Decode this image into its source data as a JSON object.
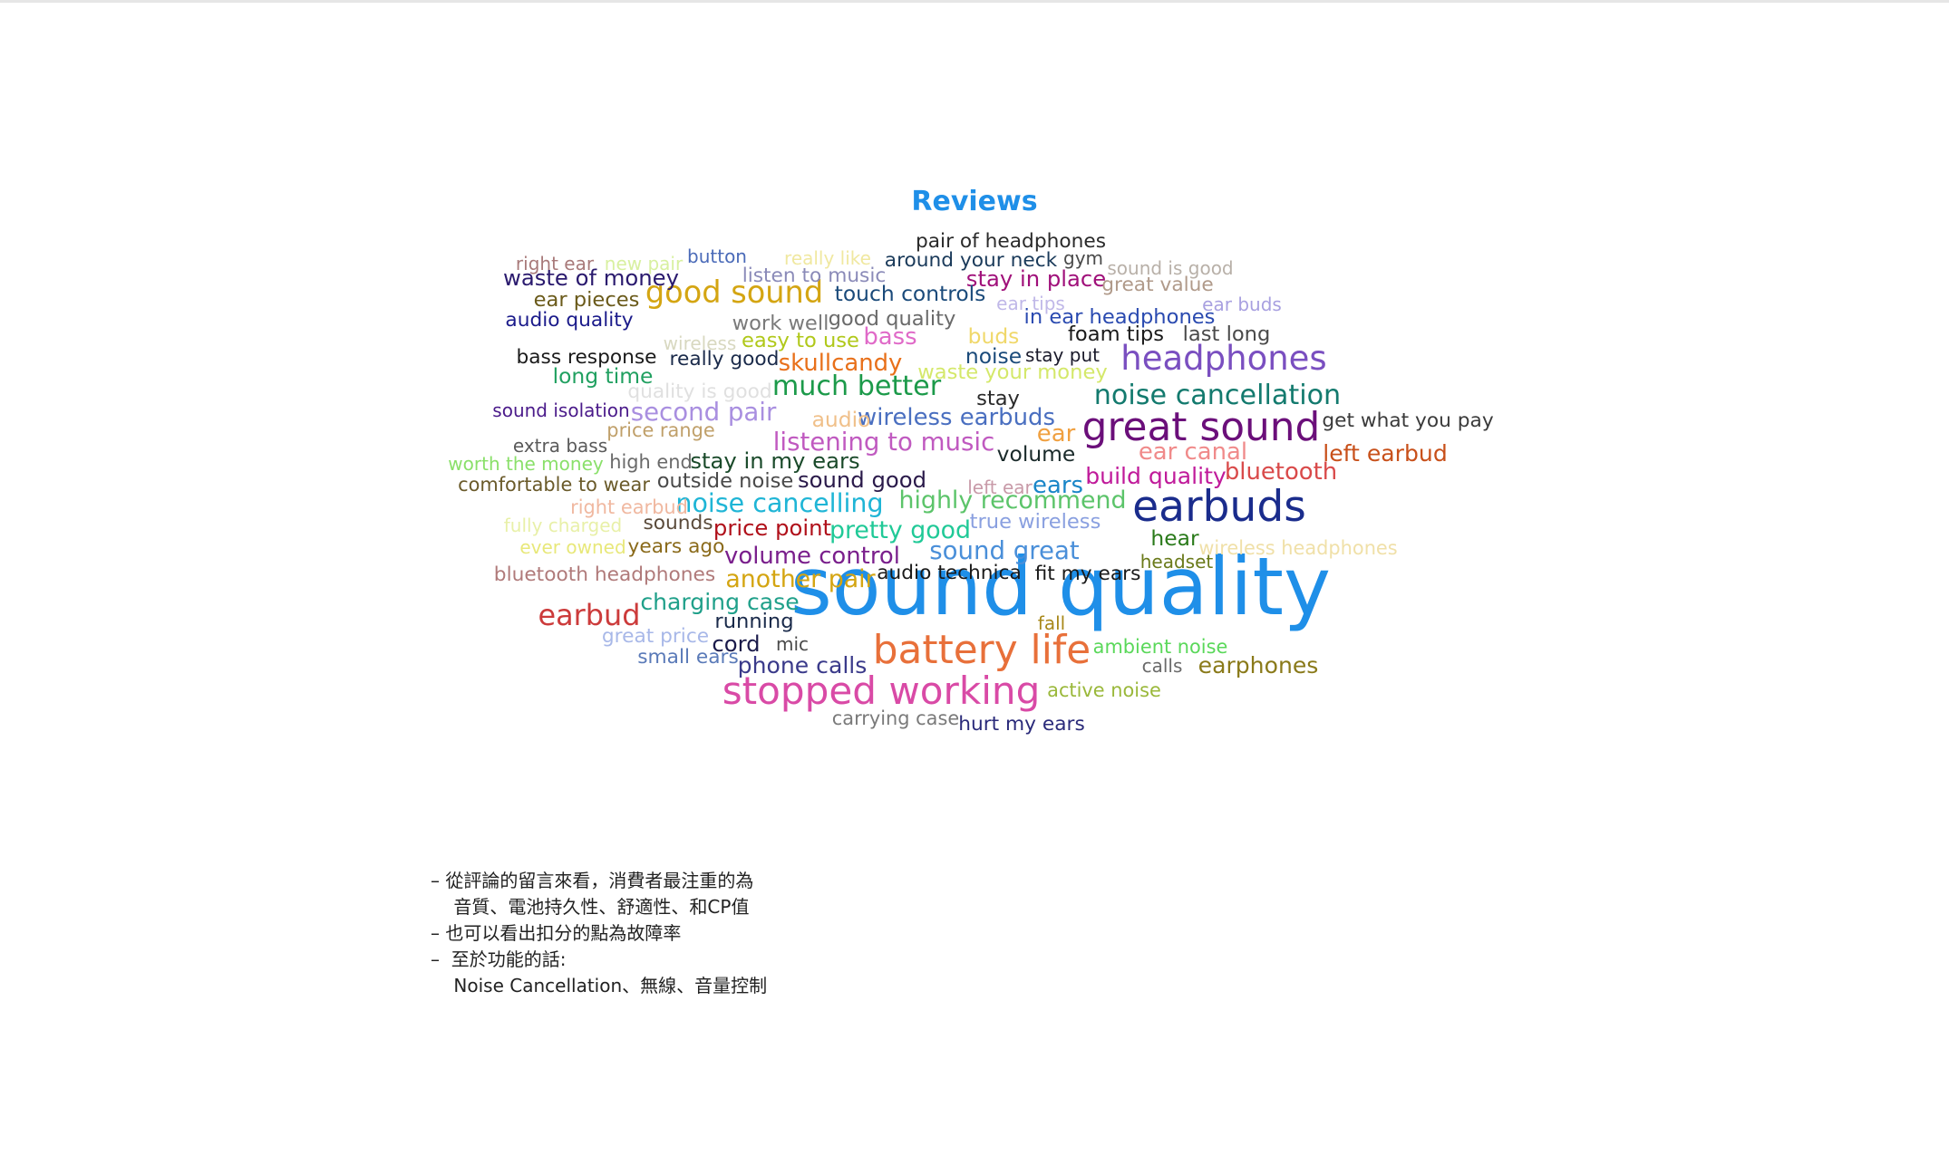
{
  "chart_data": {
    "type": "wordcloud",
    "title": "Reviews",
    "words": [
      {
        "text": "sound quality",
        "weight": 100,
        "color": "#1f8fe8"
      },
      {
        "text": "earbuds",
        "weight": 52,
        "color": "#1a2c8c"
      },
      {
        "text": "great sound",
        "weight": 48,
        "color": "#6b0f7a"
      },
      {
        "text": "battery life",
        "weight": 48,
        "color": "#e8703a"
      },
      {
        "text": "stopped working",
        "weight": 46,
        "color": "#d94aa6"
      },
      {
        "text": "headphones",
        "weight": 40,
        "color": "#7a4fc0"
      },
      {
        "text": "good sound",
        "weight": 36,
        "color": "#d4a512"
      },
      {
        "text": "earbud",
        "weight": 34,
        "color": "#cc3b3b"
      },
      {
        "text": "noise cancellation",
        "weight": 32,
        "color": "#137a6e"
      },
      {
        "text": "much better",
        "weight": 32,
        "color": "#1c9a4a"
      },
      {
        "text": "noise cancelling",
        "weight": 30,
        "color": "#1fb5d6"
      },
      {
        "text": "listening to music",
        "weight": 29,
        "color": "#c05ac0"
      },
      {
        "text": "second pair",
        "weight": 29,
        "color": "#a98fe0"
      },
      {
        "text": "sound great",
        "weight": 29,
        "color": "#4a8fd9"
      },
      {
        "text": "pretty good",
        "weight": 28,
        "color": "#20c997"
      },
      {
        "text": "highly recommend",
        "weight": 28,
        "color": "#5cc46a"
      },
      {
        "text": "another pair",
        "weight": 28,
        "color": "#d4a512"
      },
      {
        "text": "skullcandy",
        "weight": 27,
        "color": "#e8701a"
      },
      {
        "text": "bass",
        "weight": 27,
        "color": "#e06ac8"
      },
      {
        "text": "wireless earbuds",
        "weight": 27,
        "color": "#4a6fc0"
      },
      {
        "text": "volume control",
        "weight": 27,
        "color": "#7a1f8c"
      },
      {
        "text": "ear canal",
        "weight": 27,
        "color": "#f08a8a"
      },
      {
        "text": "bluetooth",
        "weight": 27,
        "color": "#d94a4a"
      },
      {
        "text": "ears",
        "weight": 27,
        "color": "#1a86c8"
      },
      {
        "text": "ear",
        "weight": 27,
        "color": "#f0a040"
      },
      {
        "text": "left earbud",
        "weight": 26,
        "color": "#c8501a"
      },
      {
        "text": "build quality",
        "weight": 26,
        "color": "#c01a9a"
      },
      {
        "text": "charging case",
        "weight": 26,
        "color": "#20a08a"
      },
      {
        "text": "phone calls",
        "weight": 26,
        "color": "#3a3a8a"
      },
      {
        "text": "earphones",
        "weight": 26,
        "color": "#8a7a1a"
      },
      {
        "text": "waste of money",
        "weight": 25,
        "color": "#2a1a6e"
      },
      {
        "text": "stay in place",
        "weight": 25,
        "color": "#a0107a"
      },
      {
        "text": "stay in my ears",
        "weight": 25,
        "color": "#1a4a2a"
      },
      {
        "text": "sound good",
        "weight": 25,
        "color": "#2a1a4a"
      },
      {
        "text": "price point",
        "weight": 25,
        "color": "#b0101a"
      },
      {
        "text": "cord",
        "weight": 25,
        "color": "#1a1a4a"
      },
      {
        "text": "touch controls",
        "weight": 24,
        "color": "#1a4a7a"
      },
      {
        "text": "long time",
        "weight": 24,
        "color": "#20a060"
      },
      {
        "text": "audio",
        "weight": 24,
        "color": "#f0c08a"
      },
      {
        "text": "volume",
        "weight": 24,
        "color": "#1a2a2a"
      },
      {
        "text": "noise",
        "weight": 24,
        "color": "#1a4a7a"
      },
      {
        "text": "buds",
        "weight": 24,
        "color": "#f0d86a"
      },
      {
        "text": "hear",
        "weight": 24,
        "color": "#2a7a1a"
      },
      {
        "text": "ear pieces",
        "weight": 23,
        "color": "#6a5a1a"
      },
      {
        "text": "outside noise",
        "weight": 23,
        "color": "#4a4a4a"
      },
      {
        "text": "good quality",
        "weight": 23,
        "color": "#6a6a6a"
      },
      {
        "text": "work well",
        "weight": 23,
        "color": "#7a7a7a"
      },
      {
        "text": "easy to use",
        "weight": 23,
        "color": "#b0c81a"
      },
      {
        "text": "waste your money",
        "weight": 23,
        "color": "#d4e86a"
      },
      {
        "text": "in ear headphones",
        "weight": 23,
        "color": "#2a4ab0"
      },
      {
        "text": "foam tips",
        "weight": 23,
        "color": "#1a1a1a"
      },
      {
        "text": "last long",
        "weight": 23,
        "color": "#4a4a4a"
      },
      {
        "text": "stay",
        "weight": 23,
        "color": "#2a2a2a"
      },
      {
        "text": "true wireless",
        "weight": 23,
        "color": "#8aa0e0"
      },
      {
        "text": "running",
        "weight": 23,
        "color": "#1a2a4a"
      },
      {
        "text": "great value",
        "weight": 22,
        "color": "#b09a8a"
      },
      {
        "text": "get what you pay",
        "weight": 22,
        "color": "#3a3a3a"
      },
      {
        "text": "pair of headphones",
        "weight": 22,
        "color": "#2a2a2a"
      },
      {
        "text": "around your neck",
        "weight": 22,
        "color": "#1a3a5a"
      },
      {
        "text": "listen to music",
        "weight": 22,
        "color": "#8a8ab8"
      },
      {
        "text": "audio quality",
        "weight": 22,
        "color": "#1a1a8a"
      },
      {
        "text": "really good",
        "weight": 22,
        "color": "#1a2a4a"
      },
      {
        "text": "bass response",
        "weight": 22,
        "color": "#1a1a1a"
      },
      {
        "text": "quality is good",
        "weight": 22,
        "color": "#e0e0e0"
      },
      {
        "text": "sounds",
        "weight": 22,
        "color": "#5a4a3a"
      },
      {
        "text": "years ago",
        "weight": 22,
        "color": "#8a6a1a"
      },
      {
        "text": "bluetooth headphones",
        "weight": 22,
        "color": "#b07a7a"
      },
      {
        "text": "great price",
        "weight": 22,
        "color": "#a8b8e8"
      },
      {
        "text": "small ears",
        "weight": 22,
        "color": "#5a7ab8"
      },
      {
        "text": "audio technica",
        "weight": 22,
        "color": "#1a1a1a"
      },
      {
        "text": "fit my ears",
        "weight": 22,
        "color": "#1a1a1a"
      },
      {
        "text": "hurt my ears",
        "weight": 22,
        "color": "#2a2a7a"
      },
      {
        "text": "carrying case",
        "weight": 21,
        "color": "#7a7a7a"
      },
      {
        "text": "active noise",
        "weight": 21,
        "color": "#9ab83a"
      },
      {
        "text": "ambient noise",
        "weight": 21,
        "color": "#5ad85a"
      },
      {
        "text": "wireless headphones",
        "weight": 21,
        "color": "#f0e0a8"
      },
      {
        "text": "right earbud",
        "weight": 21,
        "color": "#f0b8a0"
      },
      {
        "text": "comfortable to wear",
        "weight": 21,
        "color": "#6a5a2a"
      },
      {
        "text": "high end",
        "weight": 21,
        "color": "#6a6a6a"
      },
      {
        "text": "price range",
        "weight": 21,
        "color": "#c0a06a"
      },
      {
        "text": "worth the money",
        "weight": 20,
        "color": "#8ae06a"
      },
      {
        "text": "sound isolation",
        "weight": 20,
        "color": "#4a1a8a"
      },
      {
        "text": "extra bass",
        "weight": 20,
        "color": "#5a5a5a"
      },
      {
        "text": "fully charged",
        "weight": 20,
        "color": "#e8f0a8"
      },
      {
        "text": "ever owned",
        "weight": 20,
        "color": "#e8e87a"
      },
      {
        "text": "left ear",
        "weight": 20,
        "color": "#c89aa8"
      },
      {
        "text": "right ear",
        "weight": 20,
        "color": "#a87a7a"
      },
      {
        "text": "new pair",
        "weight": 20,
        "color": "#d8f0a0"
      },
      {
        "text": "button",
        "weight": 20,
        "color": "#4a6ab8"
      },
      {
        "text": "really like",
        "weight": 20,
        "color": "#f0e8a0"
      },
      {
        "text": "gym",
        "weight": 20,
        "color": "#4a4a4a"
      },
      {
        "text": "sound is good",
        "weight": 20,
        "color": "#b8b0a8"
      },
      {
        "text": "ear tips",
        "weight": 20,
        "color": "#c0b8e8"
      },
      {
        "text": "ear buds",
        "weight": 20,
        "color": "#a8a0e0"
      },
      {
        "text": "wireless",
        "weight": 20,
        "color": "#d8d8c0"
      },
      {
        "text": "stay put",
        "weight": 20,
        "color": "#1a1a2a"
      },
      {
        "text": "headset",
        "weight": 20,
        "color": "#6a7a1a"
      },
      {
        "text": "calls",
        "weight": 20,
        "color": "#6a6a6a"
      },
      {
        "text": "fall",
        "weight": 20,
        "color": "#a8881a"
      },
      {
        "text": "mic",
        "weight": 20,
        "color": "#4a4a4a"
      }
    ]
  },
  "notes": {
    "lines": [
      "– 從評論的留言來看，消費者最注重的為",
      "    音質、電池持久性、舒適性、和CP值",
      "– 也可以看出扣分的點為故障率",
      "–  至於功能的話:",
      "    Noise Cancellation、無線、音量控制"
    ]
  }
}
